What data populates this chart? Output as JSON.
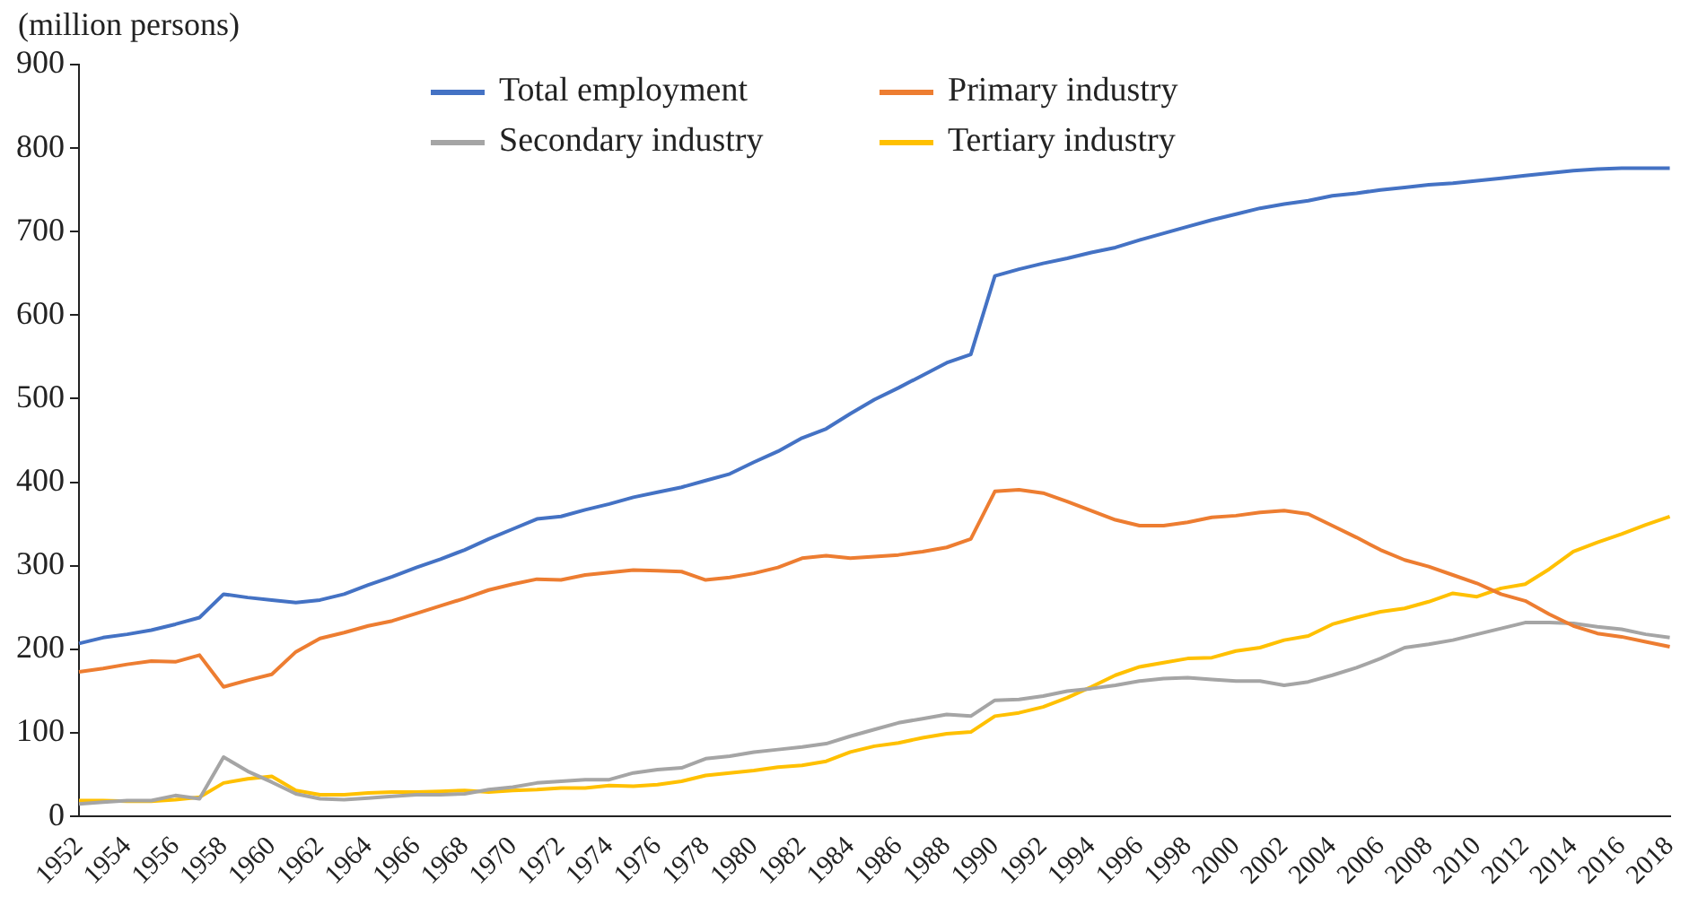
{
  "chart_data": {
    "type": "line",
    "ylabel": "(million persons)",
    "categories": [
      "1952",
      null,
      "1954",
      null,
      "1956",
      null,
      "1958",
      null,
      "1960",
      null,
      "1962",
      null,
      "1964",
      null,
      "1966",
      null,
      "1968",
      null,
      "1970",
      null,
      "1972",
      null,
      "1974",
      null,
      "1976",
      null,
      "1978",
      null,
      "1980",
      null,
      "1982",
      null,
      "1984",
      null,
      "1986",
      null,
      "1988",
      null,
      "1990",
      null,
      "1992",
      null,
      "1994",
      null,
      "1996",
      null,
      "1998",
      null,
      "2000",
      null,
      "2002",
      null,
      "2004",
      null,
      "2006",
      null,
      "2008",
      null,
      "2010",
      null,
      "2012",
      null,
      "2014",
      null,
      "2016",
      null,
      "2018"
    ],
    "series": [
      {
        "name": "Total employment",
        "color": "#4472c4",
        "values": [
          207,
          214,
          218,
          223,
          230,
          238,
          266,
          262,
          259,
          256,
          259,
          266,
          277,
          287,
          298,
          308,
          319,
          332,
          344,
          356,
          359,
          367,
          374,
          382,
          388,
          394,
          402,
          410,
          424,
          437,
          453,
          464,
          482,
          499,
          513,
          528,
          543,
          553,
          647,
          655,
          662,
          668,
          675,
          681,
          690,
          698,
          706,
          714,
          721,
          728,
          733,
          737,
          743,
          746,
          750,
          753,
          756,
          758,
          761,
          764,
          767,
          770,
          773,
          775,
          776,
          776,
          776
        ]
      },
      {
        "name": "Primary industry",
        "color": "#ed7d31",
        "values": [
          173,
          177,
          182,
          186,
          185,
          193,
          155,
          163,
          170,
          197,
          213,
          220,
          228,
          234,
          243,
          252,
          261,
          271,
          278,
          284,
          283,
          289,
          292,
          295,
          294,
          293,
          283,
          286,
          291,
          298,
          309,
          312,
          309,
          311,
          313,
          317,
          322,
          332,
          389,
          391,
          387,
          377,
          366,
          355,
          348,
          348,
          352,
          358,
          360,
          364,
          366,
          362,
          348,
          334,
          319,
          307,
          299,
          289,
          279,
          266,
          258,
          242,
          228,
          219,
          215,
          209,
          203
        ]
      },
      {
        "name": "Secondary industry",
        "color": "#a5a5a5",
        "values": [
          15,
          17,
          19,
          19,
          25,
          21,
          71,
          54,
          41,
          27,
          21,
          20,
          22,
          24,
          26,
          26,
          27,
          32,
          35,
          40,
          42,
          44,
          44,
          52,
          56,
          58,
          69,
          72,
          77,
          80,
          83,
          87,
          96,
          104,
          112,
          117,
          122,
          120,
          139,
          140,
          144,
          150,
          153,
          157,
          162,
          165,
          166,
          164,
          162,
          162,
          157,
          161,
          169,
          178,
          189,
          202,
          206,
          211,
          218,
          225,
          232,
          232,
          231,
          227,
          224,
          218,
          214
        ]
      },
      {
        "name": "Tertiary industry",
        "color": "#ffc000",
        "values": [
          19,
          19,
          18,
          18,
          20,
          23,
          40,
          45,
          48,
          31,
          26,
          26,
          28,
          29,
          29,
          30,
          31,
          29,
          31,
          32,
          34,
          34,
          37,
          36,
          38,
          42,
          49,
          52,
          55,
          59,
          61,
          66,
          77,
          84,
          88,
          94,
          99,
          101,
          120,
          124,
          131,
          142,
          155,
          169,
          179,
          184,
          189,
          190,
          198,
          202,
          211,
          216,
          230,
          238,
          245,
          249,
          257,
          267,
          263,
          273,
          278,
          296,
          317,
          328,
          338,
          349,
          359
        ]
      }
    ],
    "ylim": [
      0,
      900
    ],
    "yticks": [
      0,
      100,
      200,
      300,
      400,
      500,
      600,
      700,
      800,
      900
    ],
    "grid": false,
    "legend": "top",
    "marker": "none",
    "line_style": "solid"
  }
}
